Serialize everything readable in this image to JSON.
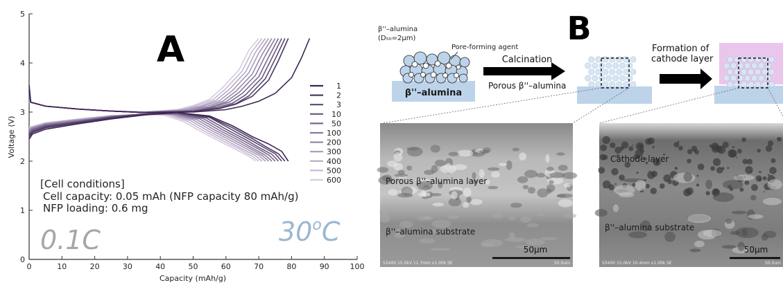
{
  "panel_a": {
    "label": "A",
    "conditions_title": "[Cell conditions]",
    "conditions_line1": "Cell capacity: 0.05 mAh (NFP capacity 80 mAh/g)",
    "conditions_line2": "NFP loading: 0.6 mg",
    "rate": "0.1C",
    "temp_main": "30",
    "temp_sup": "o",
    "temp_unit": "C"
  },
  "panel_b": {
    "label": "B",
    "powder_label": "β''–alumina",
    "powder_size": "(D₅₀=2μm)",
    "pore_agent": "Pore-forming agent",
    "substrate_label": "β''–alumina",
    "step1": "Calcination",
    "porous_label": "Porous β''–alumina",
    "step2_line1": "Formation of",
    "step2_line2": "cathode layer",
    "sem1_layer": "Porous β''–alumina layer",
    "sem1_substrate": "β''–alumina substrate",
    "sem1_scale": "50μm",
    "sem1_footer": "S3400 15.0kV 11.7mm x1.00k SE",
    "sem1_footer_right": "50.0um",
    "sem2_layer": "Cathode layer",
    "sem2_substrate": "β''–alumina substrate",
    "sem2_scale": "50μm",
    "sem2_footer": "S3400 15.0kV 10.4mm x1.00k SE",
    "sem2_footer_right": "50.0um"
  },
  "colors": {
    "cycle_dark": "#3c2554",
    "cycle_light": "#d6cbe1",
    "rate_text": "#a6a6a6",
    "temp_text": "#9ab7d3",
    "alumina_blue": "#bcd3ea",
    "cathode_pink": "#ebc6ec"
  },
  "chart_data": {
    "type": "line",
    "xlabel": "Capacity (mAh/g)",
    "ylabel": "Voltage (V)",
    "xlim": [
      0,
      100
    ],
    "ylim": [
      0,
      5
    ],
    "xticks": [
      0,
      10,
      20,
      30,
      40,
      50,
      60,
      70,
      80,
      90,
      100
    ],
    "yticks": [
      0,
      1,
      2,
      3,
      4,
      5
    ],
    "legend_position": "right",
    "grid": false,
    "series": [
      {
        "name": "1",
        "charge": [
          [
            0,
            3.55
          ],
          [
            0.5,
            3.2
          ],
          [
            5,
            3.12
          ],
          [
            15,
            3.06
          ],
          [
            25,
            3.02
          ],
          [
            35,
            2.99
          ],
          [
            50,
            3.0
          ],
          [
            60,
            3.05
          ],
          [
            65,
            3.12
          ],
          [
            70,
            3.22
          ],
          [
            75,
            3.38
          ],
          [
            80,
            3.7
          ],
          [
            83,
            4.1
          ],
          [
            85.5,
            4.5
          ]
        ],
        "discharge": [
          [
            0,
            2.45
          ],
          [
            1,
            2.55
          ],
          [
            5,
            2.65
          ],
          [
            15,
            2.76
          ],
          [
            25,
            2.86
          ],
          [
            35,
            2.94
          ],
          [
            45,
            2.99
          ],
          [
            55,
            2.92
          ],
          [
            62,
            2.72
          ],
          [
            68,
            2.5
          ],
          [
            73,
            2.35
          ],
          [
            77,
            2.2
          ],
          [
            79,
            2.0
          ]
        ]
      },
      {
        "name": "2",
        "charge": [
          [
            0,
            3.45
          ],
          [
            0.5,
            3.2
          ],
          [
            5,
            3.12
          ],
          [
            15,
            3.06
          ],
          [
            25,
            3.02
          ],
          [
            35,
            2.99
          ],
          [
            50,
            3.01
          ],
          [
            58,
            3.07
          ],
          [
            63,
            3.16
          ],
          [
            68,
            3.32
          ],
          [
            73,
            3.65
          ],
          [
            76,
            4.05
          ],
          [
            79,
            4.5
          ]
        ],
        "discharge": [
          [
            0,
            2.5
          ],
          [
            1,
            2.58
          ],
          [
            5,
            2.68
          ],
          [
            15,
            2.78
          ],
          [
            25,
            2.88
          ],
          [
            35,
            2.95
          ],
          [
            45,
            2.99
          ],
          [
            55,
            2.9
          ],
          [
            62,
            2.68
          ],
          [
            68,
            2.46
          ],
          [
            72,
            2.3
          ],
          [
            76,
            2.15
          ],
          [
            78,
            2.0
          ]
        ]
      },
      {
        "name": "3",
        "charge": [
          [
            0,
            3.4
          ],
          [
            0.5,
            3.2
          ],
          [
            5,
            3.12
          ],
          [
            15,
            3.06
          ],
          [
            25,
            3.02
          ],
          [
            35,
            2.99
          ],
          [
            50,
            3.01
          ],
          [
            58,
            3.08
          ],
          [
            63,
            3.17
          ],
          [
            67,
            3.33
          ],
          [
            72,
            3.68
          ],
          [
            75,
            4.08
          ],
          [
            78,
            4.5
          ]
        ],
        "discharge": [
          [
            0,
            2.52
          ],
          [
            1,
            2.6
          ],
          [
            5,
            2.7
          ],
          [
            15,
            2.79
          ],
          [
            25,
            2.89
          ],
          [
            35,
            2.96
          ],
          [
            45,
            2.99
          ],
          [
            55,
            2.89
          ],
          [
            61,
            2.67
          ],
          [
            67,
            2.45
          ],
          [
            71,
            2.3
          ],
          [
            75,
            2.15
          ],
          [
            77,
            2.0
          ]
        ]
      },
      {
        "name": "10",
        "charge": [
          [
            0,
            3.35
          ],
          [
            0.5,
            3.2
          ],
          [
            5,
            3.12
          ],
          [
            15,
            3.06
          ],
          [
            25,
            3.02
          ],
          [
            35,
            2.99
          ],
          [
            50,
            3.02
          ],
          [
            57,
            3.09
          ],
          [
            62,
            3.18
          ],
          [
            66,
            3.35
          ],
          [
            71,
            3.7
          ],
          [
            74,
            4.1
          ],
          [
            77,
            4.5
          ]
        ],
        "discharge": [
          [
            0,
            2.55
          ],
          [
            1,
            2.62
          ],
          [
            5,
            2.72
          ],
          [
            15,
            2.8
          ],
          [
            25,
            2.9
          ],
          [
            35,
            2.96
          ],
          [
            45,
            2.98
          ],
          [
            54,
            2.88
          ],
          [
            60,
            2.65
          ],
          [
            66,
            2.44
          ],
          [
            70,
            2.28
          ],
          [
            74,
            2.14
          ],
          [
            76,
            2.0
          ]
        ]
      },
      {
        "name": "50",
        "charge": [
          [
            0,
            3.3
          ],
          [
            0.5,
            3.2
          ],
          [
            5,
            3.12
          ],
          [
            15,
            3.06
          ],
          [
            25,
            3.02
          ],
          [
            35,
            2.99
          ],
          [
            50,
            3.02
          ],
          [
            56,
            3.1
          ],
          [
            61,
            3.2
          ],
          [
            65,
            3.38
          ],
          [
            70,
            3.72
          ],
          [
            73,
            4.12
          ],
          [
            76,
            4.5
          ]
        ],
        "discharge": [
          [
            0,
            2.58
          ],
          [
            1,
            2.64
          ],
          [
            5,
            2.73
          ],
          [
            15,
            2.81
          ],
          [
            25,
            2.9
          ],
          [
            35,
            2.96
          ],
          [
            45,
            2.97
          ],
          [
            53,
            2.87
          ],
          [
            59,
            2.64
          ],
          [
            65,
            2.43
          ],
          [
            69,
            2.28
          ],
          [
            73,
            2.13
          ],
          [
            75,
            2.0
          ]
        ]
      },
      {
        "name": "100",
        "charge": [
          [
            0,
            3.28
          ],
          [
            0.5,
            3.2
          ],
          [
            5,
            3.12
          ],
          [
            15,
            3.06
          ],
          [
            25,
            3.02
          ],
          [
            35,
            2.99
          ],
          [
            50,
            3.03
          ],
          [
            55,
            3.1
          ],
          [
            60,
            3.21
          ],
          [
            64,
            3.4
          ],
          [
            69,
            3.75
          ],
          [
            72,
            4.15
          ],
          [
            75,
            4.5
          ]
        ],
        "discharge": [
          [
            0,
            2.6
          ],
          [
            1,
            2.66
          ],
          [
            5,
            2.74
          ],
          [
            15,
            2.82
          ],
          [
            25,
            2.91
          ],
          [
            35,
            2.96
          ],
          [
            45,
            2.96
          ],
          [
            52,
            2.86
          ],
          [
            58,
            2.63
          ],
          [
            64,
            2.42
          ],
          [
            68,
            2.27
          ],
          [
            72,
            2.12
          ],
          [
            74,
            2.0
          ]
        ]
      },
      {
        "name": "200",
        "charge": [
          [
            0,
            3.26
          ],
          [
            0.5,
            3.2
          ],
          [
            5,
            3.12
          ],
          [
            15,
            3.06
          ],
          [
            25,
            3.02
          ],
          [
            35,
            3.0
          ],
          [
            49,
            3.04
          ],
          [
            54,
            3.11
          ],
          [
            59,
            3.22
          ],
          [
            63,
            3.42
          ],
          [
            68,
            3.77
          ],
          [
            71,
            4.17
          ],
          [
            74,
            4.5
          ]
        ],
        "discharge": [
          [
            0,
            2.62
          ],
          [
            1,
            2.67
          ],
          [
            5,
            2.75
          ],
          [
            15,
            2.83
          ],
          [
            25,
            2.91
          ],
          [
            35,
            2.96
          ],
          [
            44,
            2.96
          ],
          [
            51,
            2.85
          ],
          [
            57,
            2.62
          ],
          [
            63,
            2.41
          ],
          [
            67,
            2.27
          ],
          [
            71,
            2.12
          ],
          [
            73,
            2.0
          ]
        ]
      },
      {
        "name": "300",
        "charge": [
          [
            0,
            3.24
          ],
          [
            0.5,
            3.2
          ],
          [
            5,
            3.12
          ],
          [
            15,
            3.06
          ],
          [
            25,
            3.02
          ],
          [
            35,
            3.0
          ],
          [
            48,
            3.04
          ],
          [
            53,
            3.12
          ],
          [
            58,
            3.23
          ],
          [
            62,
            3.44
          ],
          [
            67,
            3.8
          ],
          [
            70,
            4.2
          ],
          [
            73,
            4.5
          ]
        ],
        "discharge": [
          [
            0,
            2.64
          ],
          [
            1,
            2.68
          ],
          [
            5,
            2.76
          ],
          [
            15,
            2.84
          ],
          [
            25,
            2.92
          ],
          [
            35,
            2.96
          ],
          [
            44,
            2.95
          ],
          [
            50,
            2.84
          ],
          [
            56,
            2.61
          ],
          [
            62,
            2.4
          ],
          [
            66,
            2.26
          ],
          [
            70,
            2.12
          ],
          [
            72,
            2.0
          ]
        ]
      },
      {
        "name": "400",
        "charge": [
          [
            0,
            3.22
          ],
          [
            0.5,
            3.2
          ],
          [
            5,
            3.12
          ],
          [
            15,
            3.06
          ],
          [
            25,
            3.02
          ],
          [
            35,
            3.0
          ],
          [
            47,
            3.05
          ],
          [
            52,
            3.12
          ],
          [
            57,
            3.24
          ],
          [
            61,
            3.46
          ],
          [
            66,
            3.82
          ],
          [
            69,
            4.22
          ],
          [
            72,
            4.5
          ]
        ],
        "discharge": [
          [
            0,
            2.66
          ],
          [
            1,
            2.69
          ],
          [
            5,
            2.77
          ],
          [
            15,
            2.85
          ],
          [
            25,
            2.92
          ],
          [
            35,
            2.95
          ],
          [
            43,
            2.95
          ],
          [
            49,
            2.83
          ],
          [
            55,
            2.6
          ],
          [
            61,
            2.39
          ],
          [
            65,
            2.25
          ],
          [
            69,
            2.11
          ],
          [
            71,
            2.0
          ]
        ]
      },
      {
        "name": "500",
        "charge": [
          [
            0,
            3.21
          ],
          [
            0.5,
            3.2
          ],
          [
            5,
            3.12
          ],
          [
            15,
            3.06
          ],
          [
            25,
            3.02
          ],
          [
            35,
            3.0
          ],
          [
            46,
            3.05
          ],
          [
            51,
            3.13
          ],
          [
            56,
            3.25
          ],
          [
            60,
            3.48
          ],
          [
            65,
            3.84
          ],
          [
            68,
            4.24
          ],
          [
            71,
            4.5
          ]
        ],
        "discharge": [
          [
            0,
            2.68
          ],
          [
            1,
            2.7
          ],
          [
            5,
            2.78
          ],
          [
            15,
            2.85
          ],
          [
            25,
            2.93
          ],
          [
            35,
            2.95
          ],
          [
            42,
            2.95
          ],
          [
            48,
            2.82
          ],
          [
            54,
            2.59
          ],
          [
            60,
            2.38
          ],
          [
            64,
            2.25
          ],
          [
            68,
            2.1
          ],
          [
            70,
            2.0
          ]
        ]
      },
      {
        "name": "600",
        "charge": [
          [
            0,
            3.2
          ],
          [
            0.5,
            3.19
          ],
          [
            5,
            3.12
          ],
          [
            15,
            3.06
          ],
          [
            25,
            3.02
          ],
          [
            35,
            3.0
          ],
          [
            45,
            3.05
          ],
          [
            50,
            3.13
          ],
          [
            55,
            3.26
          ],
          [
            59,
            3.5
          ],
          [
            64,
            3.86
          ],
          [
            67,
            4.26
          ],
          [
            70,
            4.5
          ]
        ],
        "discharge": [
          [
            0,
            2.7
          ],
          [
            1,
            2.71
          ],
          [
            5,
            2.78
          ],
          [
            15,
            2.86
          ],
          [
            25,
            2.93
          ],
          [
            35,
            2.95
          ],
          [
            41,
            2.94
          ],
          [
            47,
            2.81
          ],
          [
            53,
            2.58
          ],
          [
            59,
            2.37
          ],
          [
            63,
            2.24
          ],
          [
            67,
            2.1
          ],
          [
            69,
            2.0
          ]
        ]
      }
    ]
  }
}
